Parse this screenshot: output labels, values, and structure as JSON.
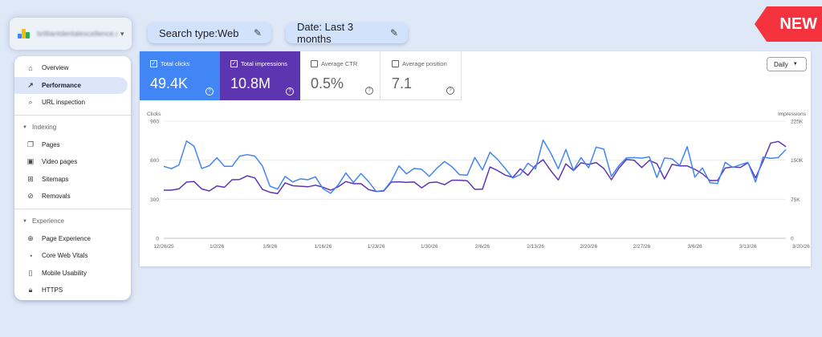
{
  "property": {
    "name": "brilliantdentalexcellence.com"
  },
  "filters": {
    "search_type": "Search type:Web",
    "date": "Date: Last 3 months"
  },
  "badge": "NEW",
  "sidebar": {
    "items_top": [
      {
        "label": "Overview",
        "icon": "home-icon"
      },
      {
        "label": "Performance",
        "icon": "trending-up-icon",
        "active": true
      },
      {
        "label": "URL inspection",
        "icon": "search-icon"
      }
    ],
    "indexing": {
      "title": "Indexing",
      "items": [
        {
          "label": "Pages",
          "icon": "pages-icon"
        },
        {
          "label": "Video pages",
          "icon": "video-pages-icon"
        },
        {
          "label": "Sitemaps",
          "icon": "sitemaps-icon"
        },
        {
          "label": "Removals",
          "icon": "removals-icon"
        }
      ]
    },
    "experience": {
      "title": "Experience",
      "items": [
        {
          "label": "Page Experience",
          "icon": "page-experience-icon"
        },
        {
          "label": "Core Web Vitals",
          "icon": "speed-icon"
        },
        {
          "label": "Mobile Usability",
          "icon": "phone-icon"
        },
        {
          "label": "HTTPS",
          "icon": "lock-icon"
        }
      ]
    }
  },
  "metrics": {
    "clicks": {
      "label": "Total clicks",
      "value": "49.4K",
      "checked": true
    },
    "impressions": {
      "label": "Total impressions",
      "value": "10.8M",
      "checked": true
    },
    "ctr": {
      "label": "Average CTR",
      "value": "0.5%",
      "checked": false
    },
    "position": {
      "label": "Average position",
      "value": "7.1",
      "checked": false
    }
  },
  "granularity": "Daily",
  "colors": {
    "clicks": "#4285f4",
    "impressions": "#5e35b1",
    "badge": "#f4333f"
  },
  "chart_data": {
    "type": "line",
    "left_axis_label": "Clicks",
    "right_axis_label": "Impressions",
    "left_ticks": [
      "900",
      "600",
      "300",
      "0"
    ],
    "right_ticks": [
      "225K",
      "150K",
      "75K",
      "0"
    ],
    "ylim_left": [
      0,
      900
    ],
    "ylim_right": [
      0,
      225000
    ],
    "x_tick_labels": [
      "12/26/25",
      "1/2/26",
      "1/9/26",
      "1/16/26",
      "1/23/26",
      "1/30/26",
      "2/6/26",
      "2/13/26",
      "2/20/26",
      "2/27/26",
      "3/6/26",
      "3/13/26",
      "3/20/26"
    ],
    "grid": true,
    "series": [
      {
        "name": "Clicks",
        "axis": "left",
        "values": [
          553,
          535,
          563,
          748,
          707,
          536,
          558,
          619,
          553,
          553,
          631,
          643,
          632,
          556,
          400,
          378,
          475,
          433,
          457,
          450,
          472,
          380,
          346,
          411,
          502,
          429,
          498,
          435,
          360,
          368,
          440,
          556,
          495,
          537,
          530,
          476,
          538,
          590,
          549,
          488,
          485,
          621,
          525,
          661,
          606,
          537,
          463,
          490,
          577,
          533,
          755,
          656,
          534,
          682,
          522,
          620,
          541,
          701,
          685,
          476,
          559,
          618,
          620,
          616,
          626,
          467,
          617,
          610,
          560,
          704,
          470,
          541,
          427,
          421,
          583,
          545,
          565,
          583,
          432,
          624,
          614,
          620,
          682
        ]
      },
      {
        "name": "Impressions",
        "axis": "right",
        "values": [
          92500,
          92500,
          95000,
          108000,
          109000,
          95000,
          91000,
          100500,
          98000,
          112500,
          113000,
          120000,
          116000,
          94000,
          88500,
          86000,
          106500,
          101000,
          100000,
          99000,
          102000,
          98000,
          92500,
          99000,
          109000,
          105000,
          105000,
          93500,
          90000,
          91000,
          108000,
          108500,
          107500,
          108000,
          97000,
          107000,
          108000,
          103000,
          111500,
          111500,
          110500,
          94000,
          94500,
          137000,
          130000,
          121500,
          117000,
          133500,
          121000,
          140000,
          151000,
          130000,
          112000,
          143000,
          130000,
          145000,
          142000,
          145500,
          134000,
          112500,
          135000,
          151500,
          150000,
          136000,
          149500,
          143500,
          114000,
          142000,
          139000,
          139000,
          132500,
          124000,
          111000,
          111000,
          135000,
          137000,
          136000,
          145000,
          116000,
          148000,
          183000,
          186000,
          176000
        ]
      }
    ]
  }
}
